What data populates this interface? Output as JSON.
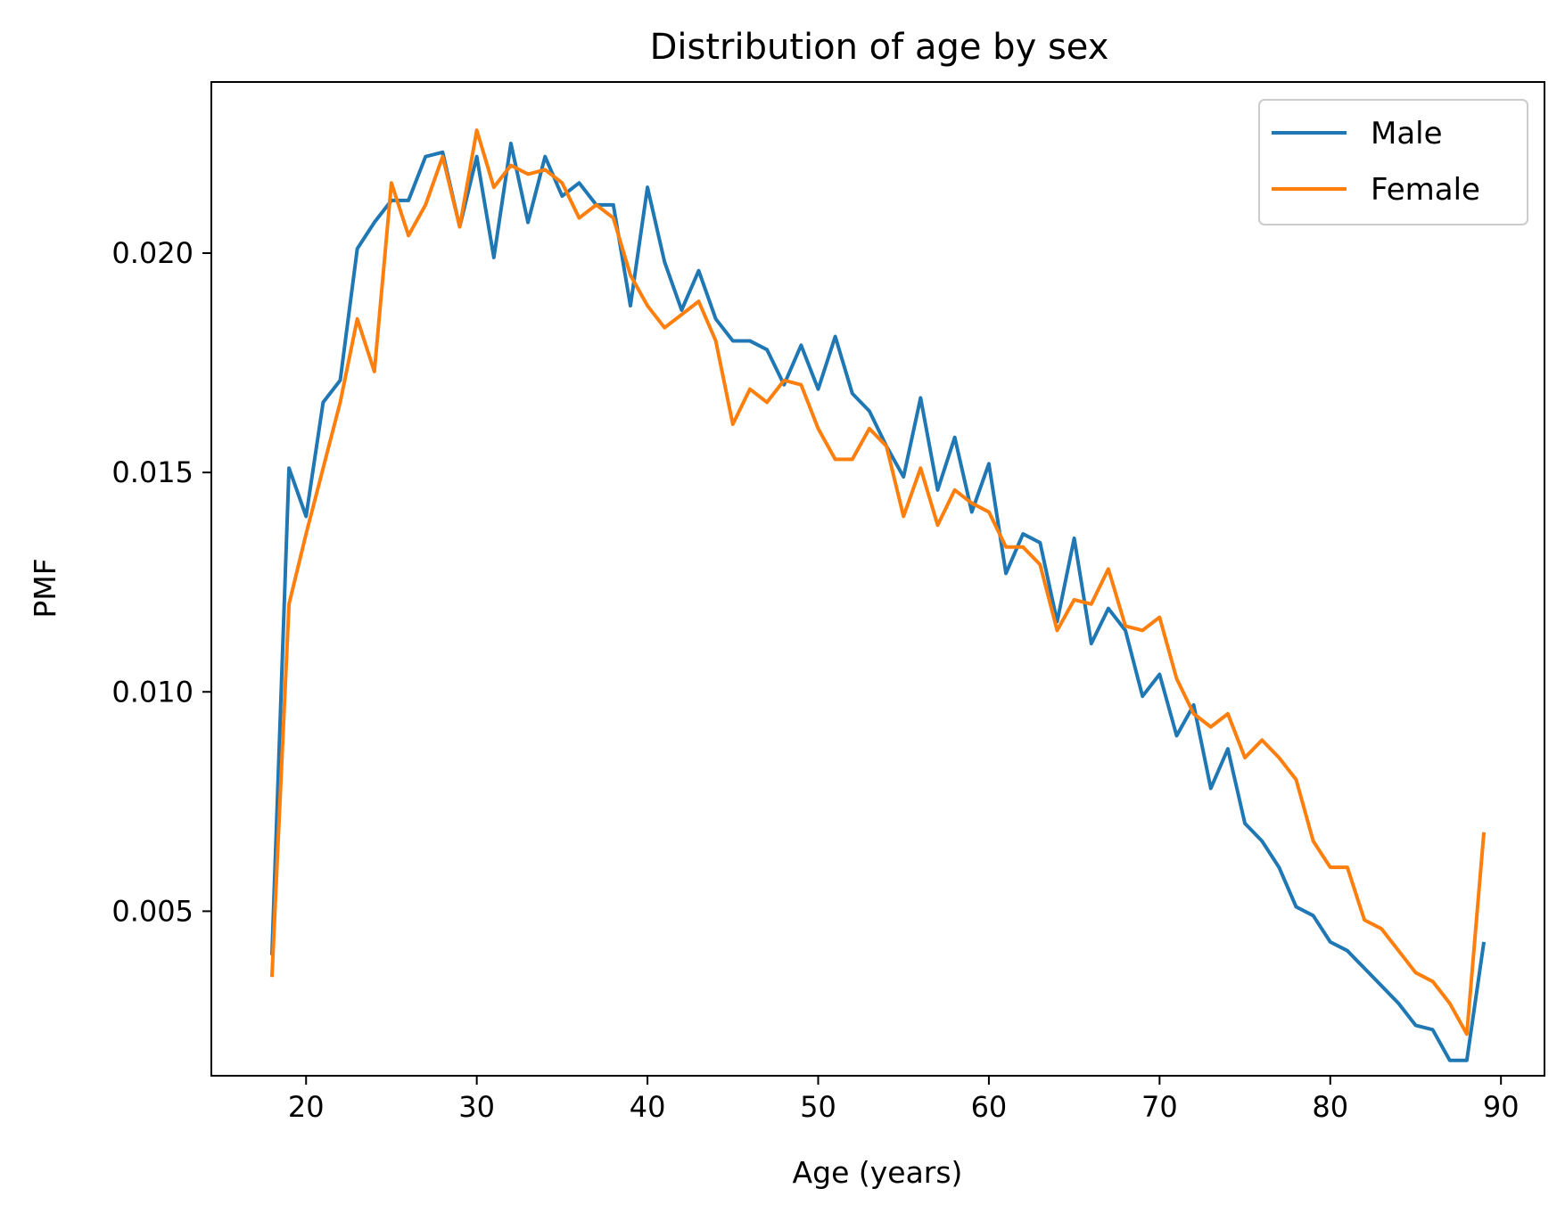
{
  "chart_data": {
    "type": "line",
    "title": "Distribution of age by sex",
    "xlabel": "Age (years)",
    "ylabel": "PMF",
    "xlim": [
      14.45,
      92.55
    ],
    "ylim": [
      0.00125,
      0.0239
    ],
    "xticks": [
      20,
      30,
      40,
      50,
      60,
      70,
      80,
      90
    ],
    "xtick_labels": [
      "20",
      "30",
      "40",
      "50",
      "60",
      "70",
      "80",
      "90"
    ],
    "yticks": [
      0.005,
      0.01,
      0.015,
      0.02
    ],
    "ytick_labels": [
      "0.005",
      "0.010",
      "0.015",
      "0.020"
    ],
    "grid": false,
    "legend_position": "top-right",
    "x": [
      18,
      19,
      20,
      21,
      22,
      23,
      24,
      25,
      26,
      27,
      28,
      29,
      30,
      31,
      32,
      33,
      34,
      35,
      36,
      37,
      38,
      39,
      40,
      41,
      42,
      43,
      44,
      45,
      46,
      47,
      48,
      49,
      50,
      51,
      52,
      53,
      54,
      55,
      56,
      57,
      58,
      59,
      60,
      61,
      62,
      63,
      64,
      65,
      66,
      67,
      68,
      69,
      70,
      71,
      72,
      73,
      74,
      75,
      76,
      77,
      78,
      79,
      80,
      81,
      82,
      83,
      84,
      85,
      86,
      87,
      88,
      89
    ],
    "series": [
      {
        "name": "Male",
        "color": "#1f77b4",
        "values": [
          0.004,
          0.0151,
          0.014,
          0.0166,
          0.0171,
          0.0201,
          0.0207,
          0.0212,
          0.0212,
          0.0222,
          0.0223,
          0.0206,
          0.0222,
          0.0199,
          0.0225,
          0.0207,
          0.0222,
          0.0213,
          0.0216,
          0.0211,
          0.0211,
          0.0188,
          0.0215,
          0.0198,
          0.0187,
          0.0196,
          0.0185,
          0.018,
          0.018,
          0.0178,
          0.017,
          0.0179,
          0.0169,
          0.0181,
          0.0168,
          0.0164,
          0.0156,
          0.0149,
          0.0167,
          0.0146,
          0.0158,
          0.0141,
          0.0152,
          0.0127,
          0.0136,
          0.0134,
          0.0116,
          0.0135,
          0.0111,
          0.0119,
          0.0114,
          0.0099,
          0.0104,
          0.009,
          0.0097,
          0.0078,
          0.0087,
          0.007,
          0.0066,
          0.006,
          0.0051,
          0.0049,
          0.0043,
          0.0041,
          0.0037,
          0.0033,
          0.0029,
          0.0024,
          0.0023,
          0.0016,
          0.0016,
          0.0043
        ]
      },
      {
        "name": "Female",
        "color": "#ff7f0e",
        "values": [
          0.0035,
          0.012,
          0.0136,
          0.0151,
          0.0166,
          0.0185,
          0.0173,
          0.0216,
          0.0204,
          0.0211,
          0.0222,
          0.0206,
          0.0228,
          0.0215,
          0.022,
          0.0218,
          0.0219,
          0.0216,
          0.0208,
          0.0211,
          0.0208,
          0.0195,
          0.0188,
          0.0183,
          0.0186,
          0.0189,
          0.018,
          0.0161,
          0.0169,
          0.0166,
          0.0171,
          0.017,
          0.016,
          0.0153,
          0.0153,
          0.016,
          0.0156,
          0.014,
          0.0151,
          0.0138,
          0.0146,
          0.0143,
          0.0141,
          0.0133,
          0.0133,
          0.0129,
          0.0114,
          0.0121,
          0.012,
          0.0128,
          0.0115,
          0.0114,
          0.0117,
          0.0103,
          0.0095,
          0.0092,
          0.0095,
          0.0085,
          0.0089,
          0.0085,
          0.008,
          0.0066,
          0.006,
          0.006,
          0.0048,
          0.0046,
          0.0041,
          0.0036,
          0.0034,
          0.0029,
          0.0022,
          0.0068
        ]
      }
    ]
  }
}
